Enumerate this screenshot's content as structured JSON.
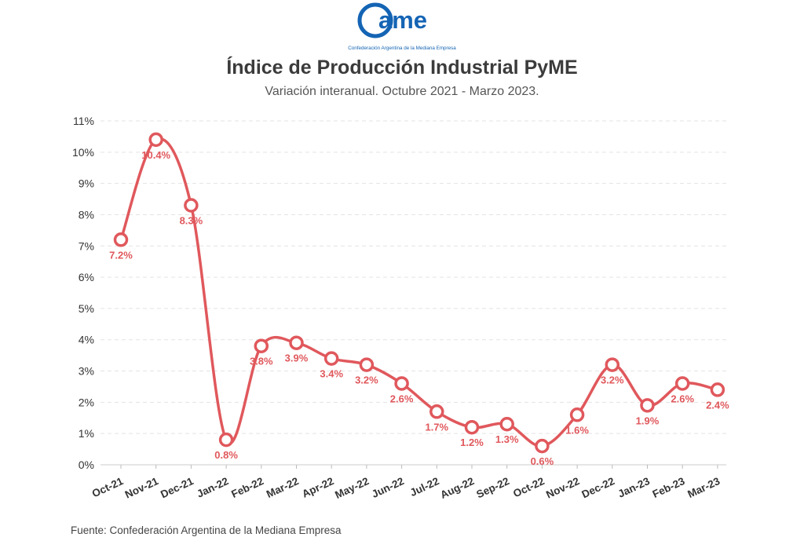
{
  "logo": {
    "wordmark": "ame",
    "caption": "Confederación Argentina de la Mediana Empresa",
    "color": "#1464b4"
  },
  "header": {
    "title": "Índice de Producción Industrial PyME",
    "subtitle": "Variación interanual. Octubre 2021 - Marzo 2023."
  },
  "footer": {
    "source": "Fuente: Confederación Argentina de la Mediana Empresa"
  },
  "chart_data": {
    "type": "line",
    "title": "Índice de Producción Industrial PyME",
    "subtitle": "Variación interanual. Octubre 2021 - Marzo 2023.",
    "categories": [
      "Oct-21",
      "Nov-21",
      "Dec-21",
      "Jan-22",
      "Feb-22",
      "Mar-22",
      "Apr-22",
      "May-22",
      "Jun-22",
      "Jul-22",
      "Aug-22",
      "Sep-22",
      "Oct-22",
      "Nov-22",
      "Dec-22",
      "Jan-23",
      "Feb-23",
      "Mar-23"
    ],
    "series": [
      {
        "values": [
          7.2,
          10.4,
          8.3,
          0.8,
          3.8,
          3.9,
          3.4,
          3.2,
          2.6,
          1.7,
          1.2,
          1.3,
          0.6,
          1.6,
          3.2,
          1.9,
          2.6,
          2.4
        ],
        "labels": [
          "7.2%",
          "10.4%",
          "8.3%",
          "0.8%",
          "3.8%",
          "3.9%",
          "3.4%",
          "3.2%",
          "2.6%",
          "1.7%",
          "1.2%",
          "1.3%",
          "0.6%",
          "1.6%",
          "3.2%",
          "1.9%",
          "2.6%",
          "2.4%"
        ],
        "color": "#e0585c"
      }
    ],
    "yticks": [
      "0%",
      "1%",
      "2%",
      "3%",
      "4%",
      "5%",
      "6%",
      "7%",
      "8%",
      "9%",
      "10%",
      "11%"
    ],
    "ylim": [
      0,
      11
    ],
    "xlabel": "",
    "ylabel": "",
    "grid": true,
    "legend": "none"
  }
}
